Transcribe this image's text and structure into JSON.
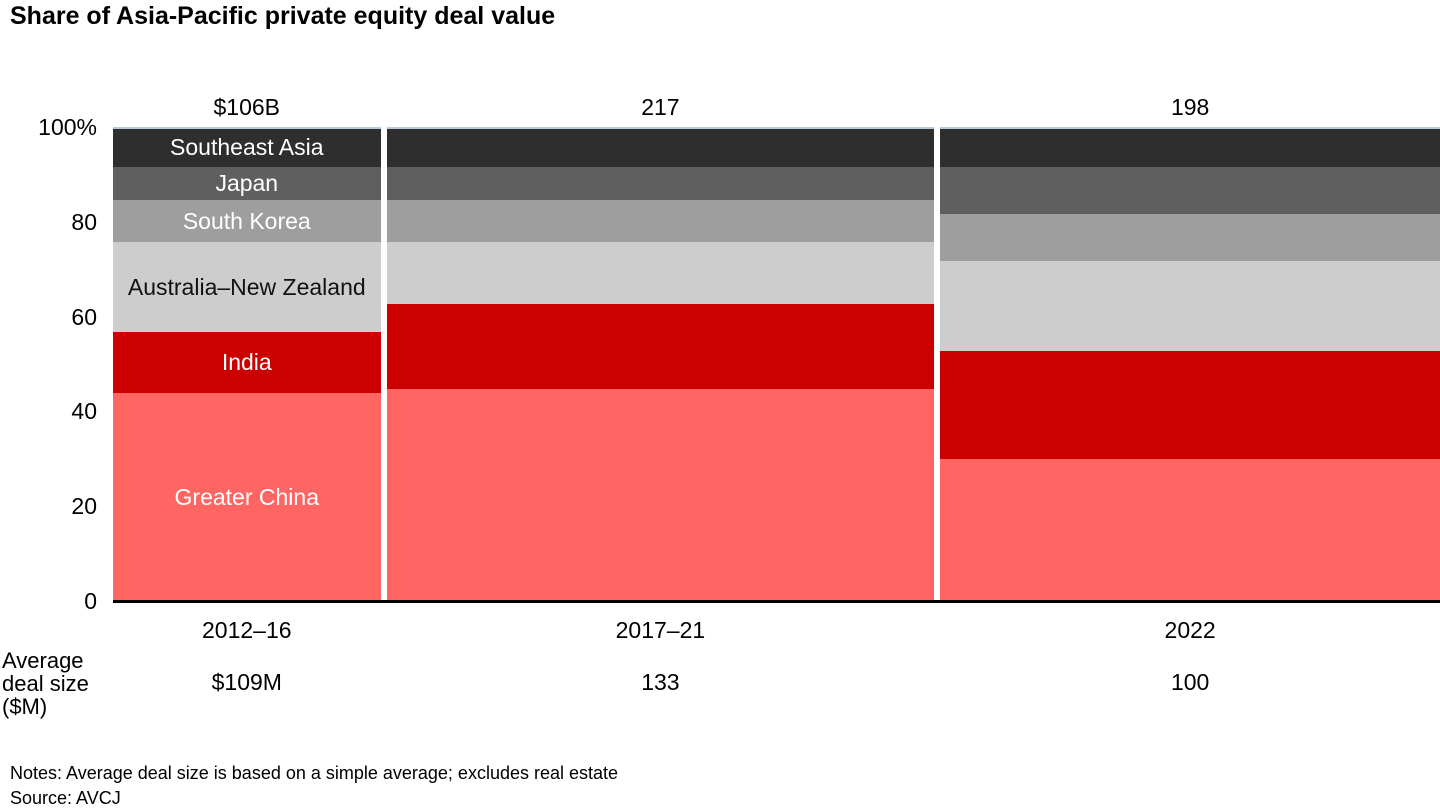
{
  "title": "Share of Asia-Pacific private equity deal value",
  "notes": "Notes: Average deal size is based on a simple average; excludes real estate",
  "source": "Source: AVCJ",
  "chart_data": {
    "type": "bar",
    "subtype": "stacked-100pct-variable-width",
    "title": "Share of Asia-Pacific private equity deal value",
    "categories": [
      "2012–16",
      "2017–21",
      "2022"
    ],
    "total_labels": [
      "$106B",
      "217",
      "198"
    ],
    "bar_width_weights": [
      106,
      217,
      198
    ],
    "y_ticks": [
      "100%",
      "80",
      "60",
      "40",
      "20",
      "0"
    ],
    "y_tick_values": [
      100,
      80,
      60,
      40,
      20,
      0
    ],
    "ylim": [
      0,
      100
    ],
    "grid": false,
    "legend": "labels-inside-first-bar",
    "label_on_bar_index": 0,
    "series": [
      {
        "name": "Southeast Asia",
        "color": "#2e2e2e",
        "label_color": "#ffffff",
        "values": [
          8,
          8,
          8
        ]
      },
      {
        "name": "Japan",
        "color": "#5f5f5f",
        "label_color": "#ffffff",
        "values": [
          7,
          7,
          10
        ]
      },
      {
        "name": "South Korea",
        "color": "#9e9e9e",
        "label_color": "#ffffff",
        "values": [
          9,
          9,
          10
        ]
      },
      {
        "name": "Australia–New Zealand",
        "color": "#cdcdcd",
        "label_color": "#111111",
        "values": [
          19,
          13,
          19
        ]
      },
      {
        "name": "India",
        "color": "#cc0000",
        "label_color": "#ffffff",
        "values": [
          13,
          18,
          23
        ]
      },
      {
        "name": "Greater China",
        "color": "#ff6663",
        "label_color": "#ffffff",
        "values": [
          44,
          45,
          30
        ]
      }
    ],
    "avg_row": {
      "label_lines": [
        "Average",
        "deal size",
        "($M)"
      ],
      "values": [
        "$109M",
        "133",
        "100"
      ]
    }
  }
}
